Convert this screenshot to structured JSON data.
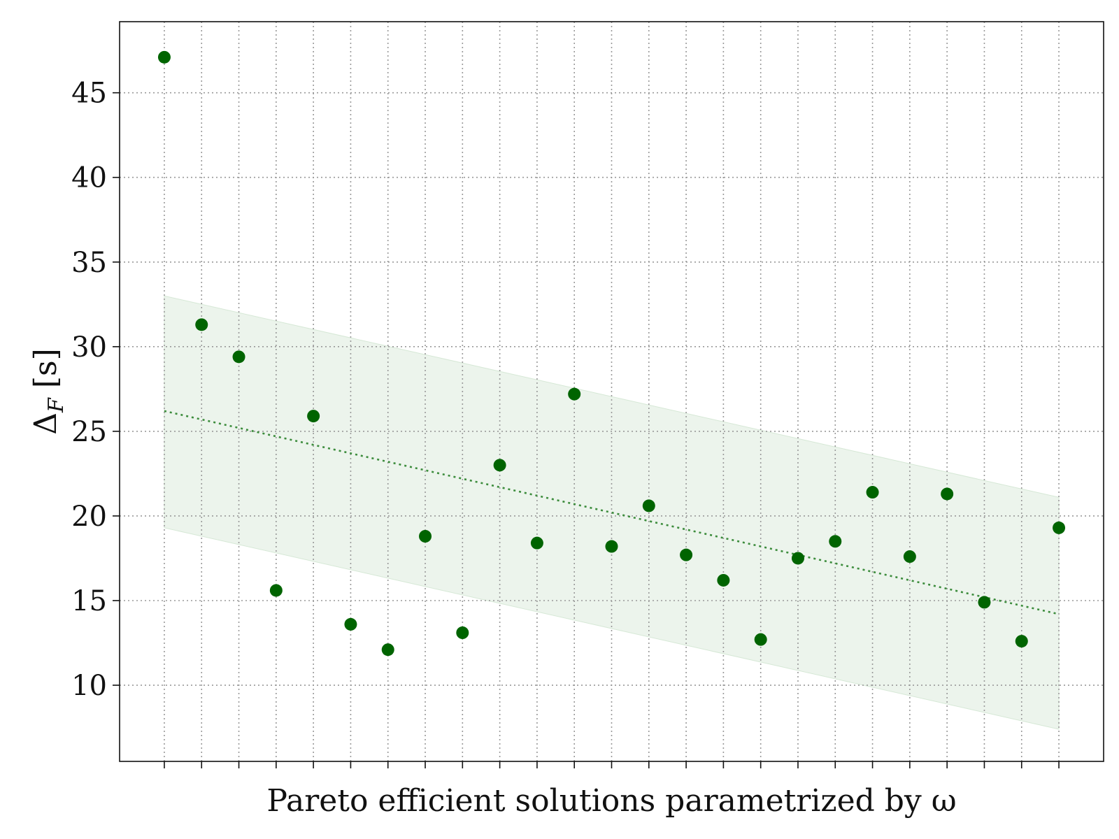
{
  "chart_data": {
    "type": "scatter",
    "title": "",
    "xlabel": "Pareto efficient solutions parametrized by ω",
    "ylabel": {
      "main": "Δ",
      "sub": "F",
      "unit": " [s]"
    },
    "ylim": [
      5.5,
      49.2
    ],
    "xlim": [
      -1.2,
      25.2
    ],
    "yticks": [
      10,
      15,
      20,
      25,
      30,
      35,
      40,
      45
    ],
    "grid": true,
    "legend": "none",
    "x": [
      0,
      1,
      2,
      3,
      4,
      5,
      6,
      7,
      8,
      9,
      10,
      11,
      12,
      13,
      14,
      15,
      16,
      17,
      18,
      19,
      20,
      21,
      22,
      23,
      24
    ],
    "values": [
      47.1,
      31.3,
      29.4,
      15.6,
      25.9,
      13.6,
      12.1,
      18.8,
      13.1,
      23.0,
      18.4,
      27.2,
      18.2,
      20.6,
      17.7,
      16.2,
      12.7,
      17.5,
      18.5,
      21.4,
      17.6,
      21.3,
      14.9,
      12.6,
      19.3
    ],
    "trend": {
      "start": [
        0,
        26.2
      ],
      "end": [
        24,
        14.2
      ]
    },
    "band": {
      "upper": [
        [
          0,
          33.0
        ],
        [
          24,
          21.1
        ]
      ],
      "lower": [
        [
          0,
          19.3
        ],
        [
          24,
          7.4
        ]
      ]
    },
    "colors": {
      "points": "#006400",
      "trend": "#3c8c3c",
      "band": "#e5f0e5",
      "grid": "#999999",
      "axis": "#111111"
    }
  }
}
